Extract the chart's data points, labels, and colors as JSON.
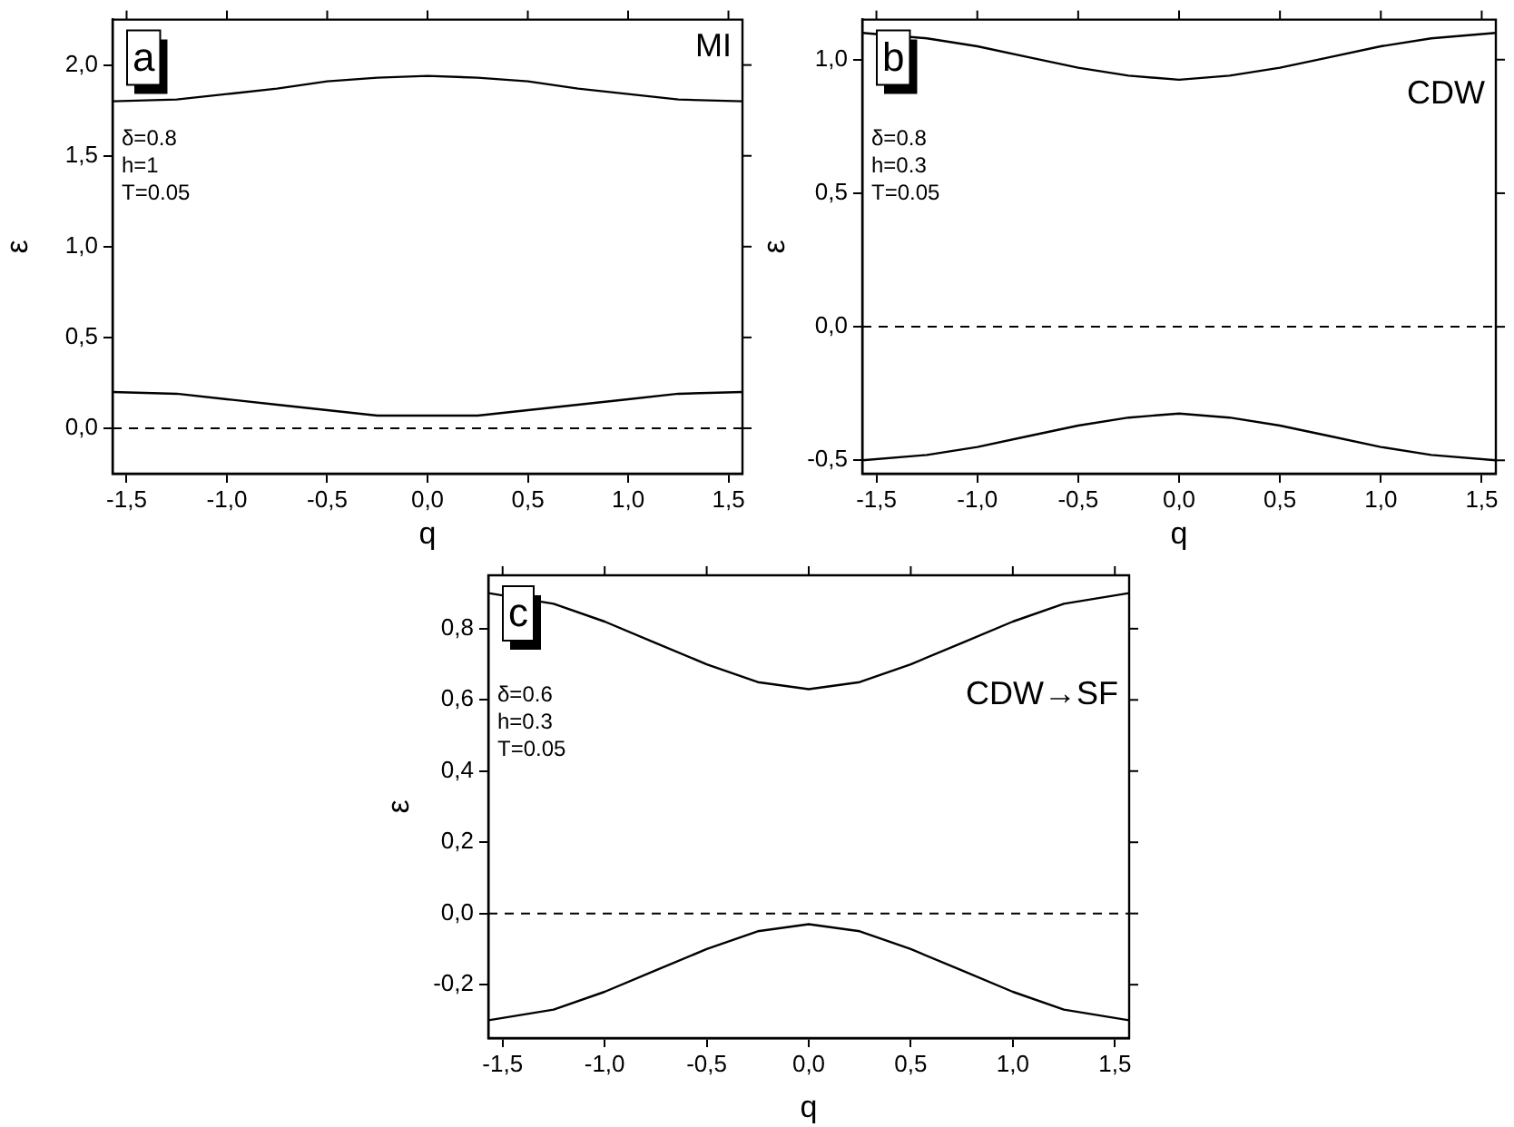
{
  "chart_data": [
    {
      "type": "line",
      "ylabel": "ε",
      "xlabel": "q",
      "annotations": [
        "a",
        "MI",
        "δ=0.8",
        "h=1",
        "T=0.05"
      ],
      "x": [
        -1.57,
        -1.25,
        -1,
        -0.75,
        -0.5,
        -0.25,
        0,
        0.25,
        0.5,
        0.75,
        1,
        1.25,
        1.57
      ],
      "series": [
        {
          "color": "#000000",
          "values": [
            1.8,
            1.81,
            1.84,
            1.87,
            1.91,
            1.93,
            1.94,
            1.93,
            1.91,
            1.87,
            1.84,
            1.81,
            1.8
          ]
        },
        {
          "color": "#000000",
          "values": [
            0.2,
            0.19,
            0.16,
            0.13,
            0.1,
            0.07,
            0.07,
            0.07,
            0.1,
            0.13,
            0.16,
            0.19,
            0.2
          ]
        }
      ],
      "xlim": [
        -1.57,
        1.57
      ],
      "ylim": [
        -0.25,
        2.25
      ],
      "xticks": [
        {
          "value": -1.5,
          "label": "-1,5"
        },
        {
          "value": -1,
          "label": "-1,0"
        },
        {
          "value": -0.5,
          "label": "-0,5"
        },
        {
          "value": 0,
          "label": "0,0"
        },
        {
          "value": 0.5,
          "label": "0,5"
        },
        {
          "value": 1,
          "label": "1,0"
        },
        {
          "value": 1.5,
          "label": "1,5"
        }
      ],
      "yticks": [
        {
          "value": 0,
          "label": "0,0"
        },
        {
          "value": 0.5,
          "label": "0,5"
        },
        {
          "value": 1,
          "label": "1,0"
        },
        {
          "value": 1.5,
          "label": "1,5"
        },
        {
          "value": 2,
          "label": "2,0"
        }
      ],
      "ref_lines": [
        {
          "axis": "y",
          "value": 0,
          "color": "#000000",
          "line_style": "dashed"
        }
      ],
      "grid": false,
      "legend": false,
      "marker": "none",
      "line_style": "solid"
    },
    {
      "type": "line",
      "ylabel": "ε",
      "xlabel": "q",
      "annotations": [
        "b",
        "CDW",
        "δ=0.8",
        "h=0.3",
        "T=0.05"
      ],
      "x": [
        -1.57,
        -1.25,
        -1,
        -0.75,
        -0.5,
        -0.25,
        0,
        0.25,
        0.5,
        0.75,
        1,
        1.25,
        1.57
      ],
      "series": [
        {
          "color": "#000000",
          "values": [
            1.1,
            1.08,
            1.05,
            1.01,
            0.97,
            0.94,
            0.925,
            0.94,
            0.97,
            1.01,
            1.05,
            1.08,
            1.1
          ]
        },
        {
          "color": "#000000",
          "values": [
            -0.5,
            -0.48,
            -0.45,
            -0.41,
            -0.37,
            -0.34,
            -0.325,
            -0.34,
            -0.37,
            -0.41,
            -0.45,
            -0.48,
            -0.5
          ]
        }
      ],
      "xlim": [
        -1.57,
        1.57
      ],
      "ylim": [
        -0.55,
        1.15
      ],
      "xticks": [
        {
          "value": -1.5,
          "label": "-1,5"
        },
        {
          "value": -1,
          "label": "-1,0"
        },
        {
          "value": -0.5,
          "label": "-0,5"
        },
        {
          "value": 0,
          "label": "0,0"
        },
        {
          "value": 0.5,
          "label": "0,5"
        },
        {
          "value": 1,
          "label": "1,0"
        },
        {
          "value": 1.5,
          "label": "1,5"
        }
      ],
      "yticks": [
        {
          "value": -0.5,
          "label": "-0,5"
        },
        {
          "value": 0,
          "label": "0,0"
        },
        {
          "value": 0.5,
          "label": "0,5"
        },
        {
          "value": 1,
          "label": "1,0"
        }
      ],
      "ref_lines": [
        {
          "axis": "y",
          "value": 0,
          "color": "#000000",
          "line_style": "dashed"
        }
      ],
      "grid": false,
      "legend": false,
      "marker": "none",
      "line_style": "solid"
    },
    {
      "type": "line",
      "ylabel": "ε",
      "xlabel": "q",
      "annotations": [
        "c",
        "CDW→SF",
        "δ=0.6",
        "h=0.3",
        "T=0.05"
      ],
      "x": [
        -1.57,
        -1.25,
        -1,
        -0.75,
        -0.5,
        -0.25,
        0,
        0.25,
        0.5,
        0.75,
        1,
        1.25,
        1.57
      ],
      "series": [
        {
          "color": "#000000",
          "values": [
            0.9,
            0.87,
            0.82,
            0.76,
            0.7,
            0.65,
            0.63,
            0.65,
            0.7,
            0.76,
            0.82,
            0.87,
            0.9
          ]
        },
        {
          "color": "#000000",
          "values": [
            -0.3,
            -0.27,
            -0.22,
            -0.16,
            -0.1,
            -0.05,
            -0.03,
            -0.05,
            -0.1,
            -0.16,
            -0.22,
            -0.27,
            -0.3
          ]
        }
      ],
      "xlim": [
        -1.57,
        1.57
      ],
      "ylim": [
        -0.35,
        0.95
      ],
      "xticks": [
        {
          "value": -1.5,
          "label": "-1,5"
        },
        {
          "value": -1,
          "label": "-1,0"
        },
        {
          "value": -0.5,
          "label": "-0,5"
        },
        {
          "value": 0,
          "label": "0,0"
        },
        {
          "value": 0.5,
          "label": "0,5"
        },
        {
          "value": 1,
          "label": "1,0"
        },
        {
          "value": 1.5,
          "label": "1,5"
        }
      ],
      "yticks": [
        {
          "value": -0.2,
          "label": "-0,2"
        },
        {
          "value": 0,
          "label": "0,0"
        },
        {
          "value": 0.2,
          "label": "0,2"
        },
        {
          "value": 0.4,
          "label": "0,4"
        },
        {
          "value": 0.6,
          "label": "0,6"
        },
        {
          "value": 0.8,
          "label": "0,8"
        }
      ],
      "ref_lines": [
        {
          "axis": "y",
          "value": 0,
          "color": "#000000",
          "line_style": "dashed"
        }
      ],
      "grid": false,
      "legend": false,
      "marker": "none",
      "line_style": "solid"
    }
  ]
}
